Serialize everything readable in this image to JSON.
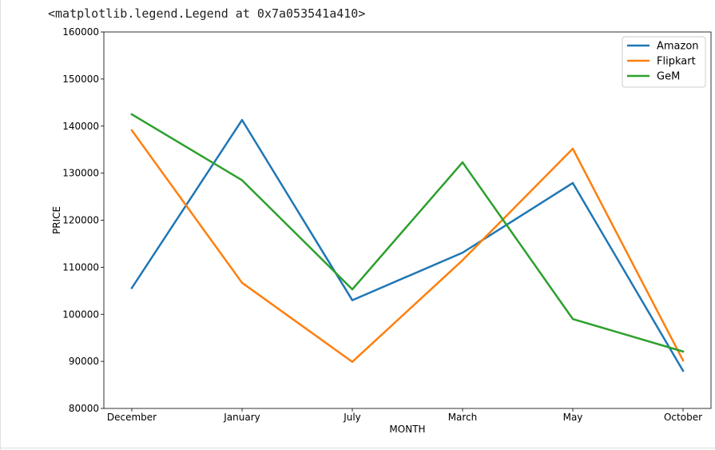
{
  "output_text": "<matplotlib.legend.Legend at 0x7a053541a410>",
  "chart_data": {
    "type": "line",
    "xlabel": "MONTH",
    "ylabel": "PRICE",
    "categories": [
      "December",
      "January",
      "July",
      "March",
      "May",
      "October"
    ],
    "ylim": [
      80000,
      160000
    ],
    "yticks": [
      80000,
      90000,
      100000,
      110000,
      120000,
      130000,
      140000,
      150000,
      160000
    ],
    "grid": false,
    "legend_position": "top-right",
    "series": [
      {
        "name": "Amazon",
        "color": "#1f77b4",
        "values": [
          105600,
          141300,
          103000,
          113100,
          127900,
          88000
        ]
      },
      {
        "name": "Flipkart",
        "color": "#ff7f0e",
        "values": [
          139100,
          106700,
          89900,
          111500,
          135200,
          90200
        ]
      },
      {
        "name": "GeM",
        "color": "#2ca02c",
        "values": [
          142500,
          128500,
          105300,
          132300,
          99000,
          92100
        ]
      }
    ]
  }
}
